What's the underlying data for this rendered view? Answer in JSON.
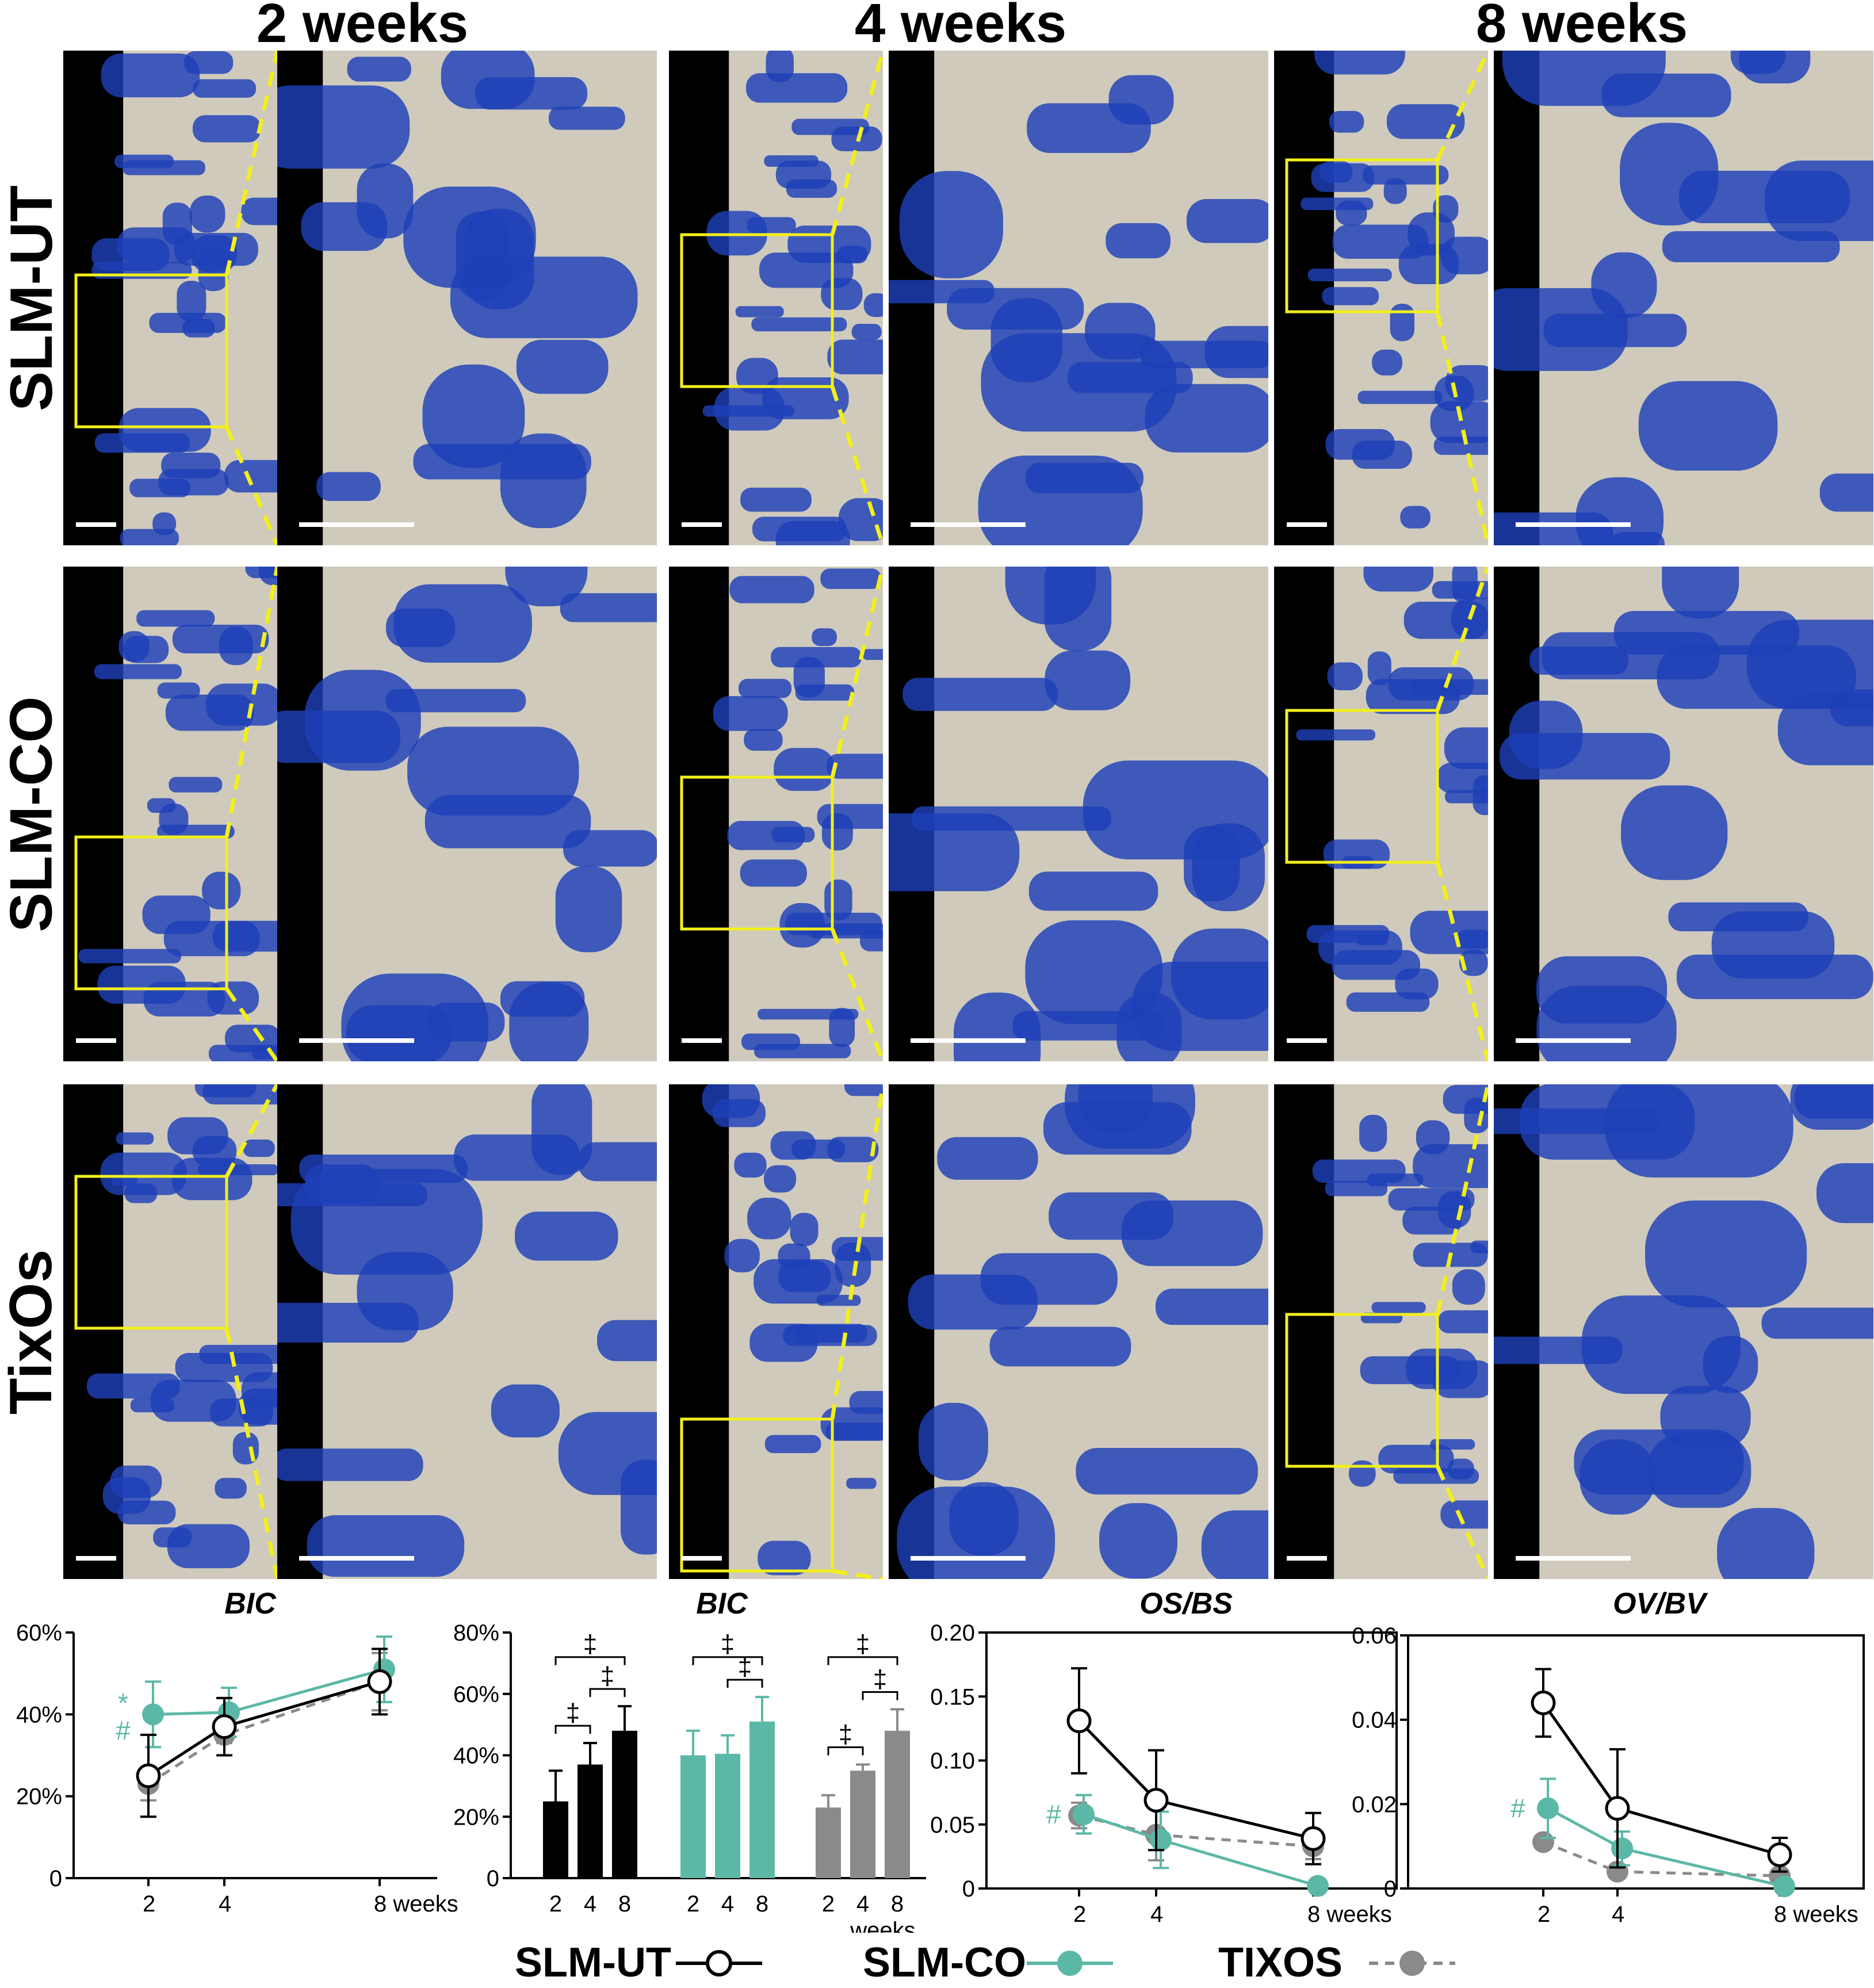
{
  "column_headers": [
    "2 weeks",
    "4 weeks",
    "8 weeks"
  ],
  "row_labels": [
    "SLM-UT",
    "SLM-CO",
    "TixOs"
  ],
  "colors": {
    "slm_ut": "#000000",
    "slm_co": "#5cb8a6",
    "tixos": "#8a8a8a",
    "highlight": "#f2ef1b",
    "stain": "#1d3fb8",
    "background_tissue": "#cfcabc"
  },
  "chart_data": [
    {
      "type": "line",
      "title": "BIC",
      "x": [
        2,
        4,
        8
      ],
      "x_tick_labels": [
        "2",
        "4",
        "8 weeks"
      ],
      "y_tick_labels": [
        "0",
        "20%",
        "40%",
        "60%"
      ],
      "ylim": [
        0,
        60
      ],
      "series": [
        {
          "name": "SLM-UT",
          "values": [
            25,
            37,
            48
          ],
          "errors": [
            10,
            7,
            8
          ]
        },
        {
          "name": "SLM-CO",
          "values": [
            40,
            40.5,
            51
          ],
          "errors": [
            8,
            6,
            8
          ]
        },
        {
          "name": "TIXOS",
          "values": [
            23,
            35,
            48
          ],
          "errors": [
            4,
            2,
            7
          ]
        }
      ],
      "annotations": [
        "*",
        "#"
      ]
    },
    {
      "type": "bar",
      "title": "BIC",
      "groups": [
        "SLM-UT",
        "SLM-CO",
        "TIXOS"
      ],
      "categories": [
        "2",
        "4",
        "8"
      ],
      "x_label": "weeks",
      "y_tick_labels": [
        "0",
        "20%",
        "40%",
        "60%",
        "80%"
      ],
      "ylim": [
        0,
        80
      ],
      "series": [
        {
          "name": "SLM-UT",
          "values": [
            25,
            37,
            48
          ],
          "errors": [
            10,
            7,
            8
          ]
        },
        {
          "name": "SLM-CO",
          "values": [
            40,
            40.5,
            51
          ],
          "errors": [
            8,
            6,
            8
          ]
        },
        {
          "name": "TIXOS",
          "values": [
            23,
            35,
            48
          ],
          "errors": [
            4,
            2,
            7
          ]
        }
      ],
      "significance_symbol": "‡"
    },
    {
      "type": "line",
      "title": "OS/BS",
      "x": [
        2,
        4,
        8
      ],
      "x_tick_labels": [
        "2",
        "4",
        "8 weeks"
      ],
      "y_tick_labels": [
        "0",
        "0.05",
        "0.10",
        "0.15",
        "0.20"
      ],
      "ylim": [
        0,
        0.2
      ],
      "series": [
        {
          "name": "SLM-UT",
          "values": [
            0.131,
            0.069,
            0.039
          ],
          "errors": [
            0.041,
            0.039,
            0.02
          ]
        },
        {
          "name": "SLM-CO",
          "values": [
            0.058,
            0.038,
            0.002
          ],
          "errors": [
            0.015,
            0.022,
            0.002
          ]
        },
        {
          "name": "TIXOS",
          "values": [
            0.057,
            0.042,
            0.033
          ],
          "errors": [
            0.01,
            0.02,
            0.01
          ]
        }
      ],
      "annotations": [
        "#"
      ]
    },
    {
      "type": "line",
      "title": "OV/BV",
      "x": [
        2,
        4,
        8
      ],
      "x_tick_labels": [
        "2",
        "4",
        "8 weeks"
      ],
      "y_tick_labels": [
        "0",
        "0.02",
        "0.04",
        "0.06"
      ],
      "ylim": [
        0,
        0.06
      ],
      "series": [
        {
          "name": "SLM-UT",
          "values": [
            0.044,
            0.019,
            0.008
          ],
          "errors": [
            0.008,
            0.014,
            0.004
          ]
        },
        {
          "name": "SLM-CO",
          "values": [
            0.019,
            0.0095,
            0.0005
          ],
          "errors": [
            0.007,
            0.004,
            0.0005
          ]
        },
        {
          "name": "TIXOS",
          "values": [
            0.011,
            0.004,
            0.003
          ],
          "errors": [
            0.001,
            0.001,
            0.0005
          ]
        }
      ],
      "annotations": [
        "#"
      ]
    }
  ],
  "legend": {
    "items": [
      {
        "label": "SLM-UT",
        "style": "open-circle-solid"
      },
      {
        "label": "SLM-CO",
        "style": "filled-teal-solid"
      },
      {
        "label": "TIXOS",
        "style": "filled-gray-dashed"
      }
    ]
  }
}
